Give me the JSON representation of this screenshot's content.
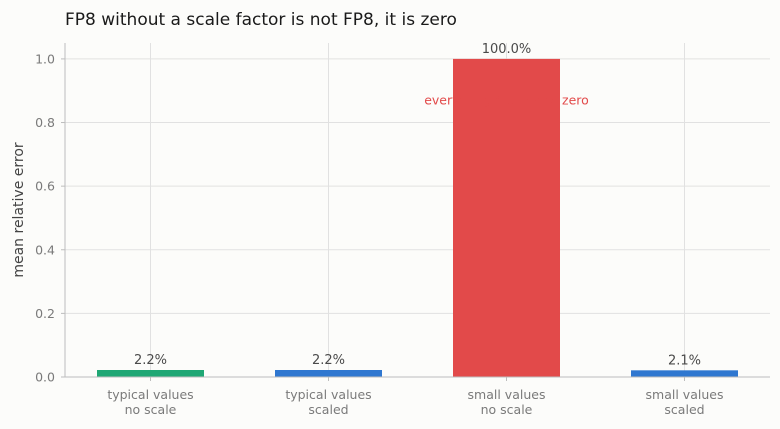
{
  "chart_data": {
    "type": "bar",
    "title": "FP8 without a scale factor is not FP8, it is zero",
    "xlabel": "",
    "ylabel": "mean relative error",
    "ylim": [
      0,
      1.05
    ],
    "yticks": [
      "0.0",
      "0.2",
      "0.4",
      "0.6",
      "0.8",
      "1.0"
    ],
    "categories": [
      [
        "typical values",
        "no scale"
      ],
      [
        "typical values",
        "scaled"
      ],
      [
        "small values",
        "no scale"
      ],
      [
        "small values",
        "scaled"
      ]
    ],
    "values": [
      0.022,
      0.022,
      1.0,
      0.021
    ],
    "data_labels": [
      "2.2%",
      "2.2%",
      "100.0%",
      "2.1%"
    ],
    "bar_colors": [
      "#1fa774",
      "#2f77d0",
      "#e24a4a",
      "#2f77d0"
    ],
    "grid": true,
    "annotation": {
      "text": "everything flushed to zero",
      "x_category": 2,
      "y": 0.87,
      "color": "#e24a4a"
    }
  }
}
